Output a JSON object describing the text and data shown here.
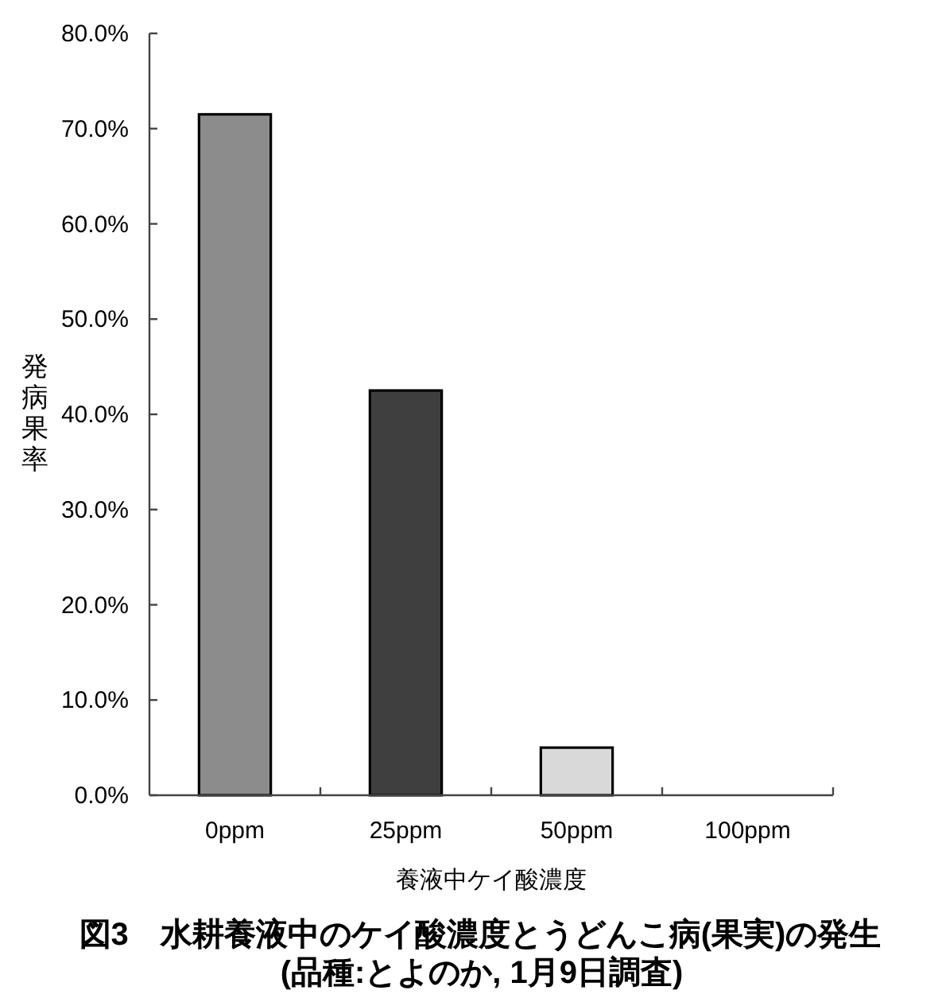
{
  "chart_data": {
    "type": "bar",
    "title": "図3　水耕養液中のケイ酸濃度とうどんこ病(果実)の発生",
    "subtitle": "(品種:とよのか, 1月9日調査)",
    "xlabel": "養液中ケイ酸濃度",
    "ylabel": "発病果率",
    "categories": [
      "0ppm",
      "25ppm",
      "50ppm",
      "100ppm"
    ],
    "values": [
      71.5,
      42.5,
      5,
      0
    ],
    "colors": [
      "#8c8c8c",
      "#3f3f3f",
      "#d9d9d9",
      null
    ],
    "ylim": [
      0,
      80
    ],
    "yticks": [
      {
        "value": 0,
        "label": "0.0%"
      },
      {
        "value": 10,
        "label": "10.0%"
      },
      {
        "value": 20,
        "label": "20.0%"
      },
      {
        "value": 30,
        "label": "30.0%"
      },
      {
        "value": 40,
        "label": "40.0%"
      },
      {
        "value": 50,
        "label": "50.0%"
      },
      {
        "value": 60,
        "label": "60.0%"
      },
      {
        "value": 70,
        "label": "70.0%"
      },
      {
        "value": 80,
        "label": "80.0%"
      }
    ]
  }
}
